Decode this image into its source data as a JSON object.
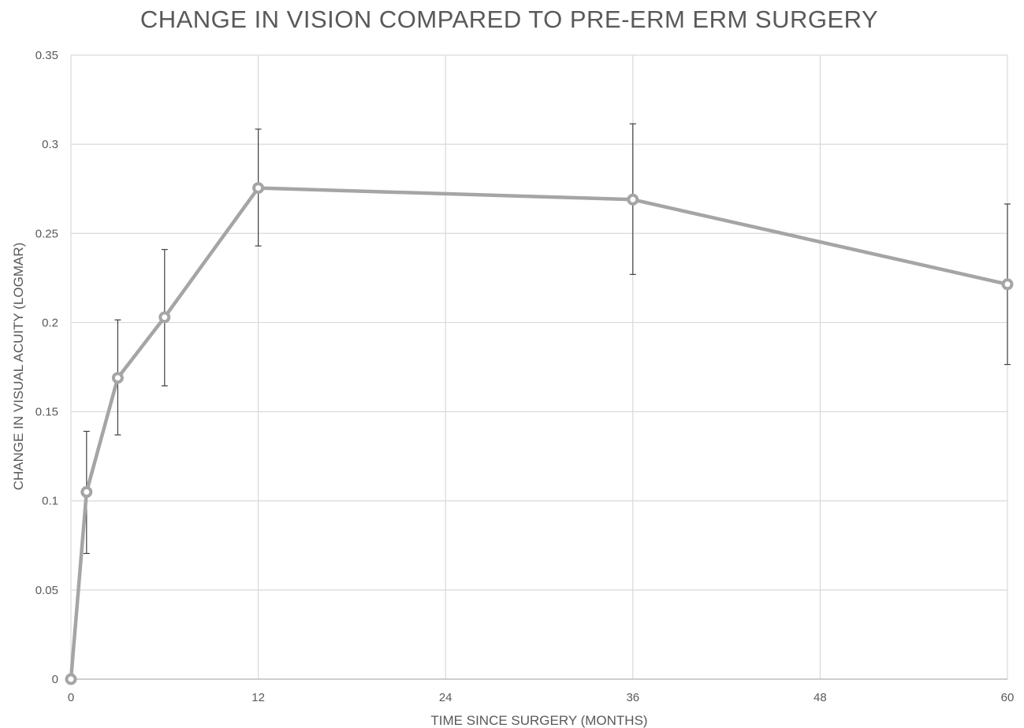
{
  "chart_data": {
    "type": "line",
    "title": "CHANGE IN VISION COMPARED TO PRE-ERM ERM SURGERY",
    "xlabel": "TIME SINCE SURGERY (MONTHS)",
    "ylabel": "CHANGE IN VISUAL ACUITY (LOGMAR)",
    "xlim": [
      0,
      60
    ],
    "ylim": [
      0,
      0.35
    ],
    "x_ticks": [
      "0",
      "12",
      "24",
      "36",
      "48",
      "60"
    ],
    "x_tick_values": [
      0,
      12,
      24,
      36,
      48,
      60
    ],
    "y_ticks": [
      "0",
      "0.05",
      "0.1",
      "0.15",
      "0.2",
      "0.25",
      "0.3",
      "0.35"
    ],
    "y_tick_values": [
      0,
      0.05,
      0.1,
      0.15,
      0.2,
      0.25,
      0.3,
      0.35
    ],
    "grid": true,
    "series": [
      {
        "x": [
          0,
          1,
          3,
          6,
          12,
          36,
          60
        ],
        "y": [
          0,
          0.105,
          0.169,
          0.203,
          0.2755,
          0.269,
          0.2215
        ],
        "error_low": [
          null,
          0.0705,
          0.137,
          0.1645,
          0.243,
          0.227,
          0.1765
        ],
        "error_high": [
          null,
          0.139,
          0.2015,
          0.241,
          0.3085,
          0.3115,
          0.2665
        ]
      }
    ],
    "colors": {
      "line": "#a5a5a5",
      "error_bar": "#404040",
      "gridline": "#d9d9d9",
      "text": "#595959"
    }
  }
}
